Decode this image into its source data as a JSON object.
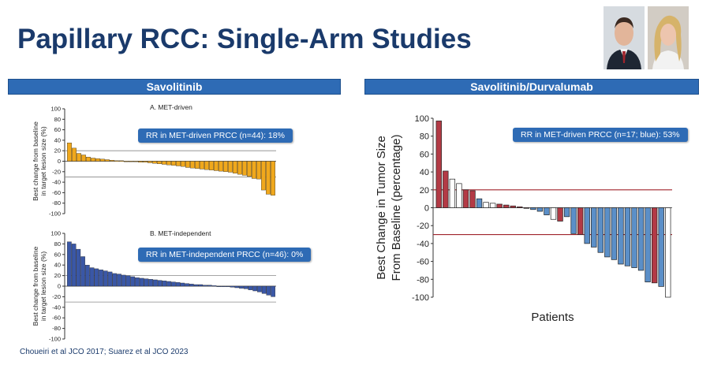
{
  "slide": {
    "title": "Papillary RCC: Single-Arm Studies",
    "footer": "Choueiri et al JCO 2017; Suarez et al JCO 2023"
  },
  "panels": {
    "left_header": "Savolitinib",
    "right_header": "Savolitinib/Durvalumab",
    "box_a": "RR in MET-driven PRCC (n=44): 18%",
    "box_b": "RR in MET-independent PRCC (n=46): 0%",
    "box_c": "RR in MET-driven PRCC (n=17; blue): 53%"
  },
  "colors": {
    "orange": "#f0a81c",
    "navy": "#3a57a6",
    "red": "#b33a45",
    "blue": "#5b8fc8",
    "white": "#ffffff",
    "threshold": "#a0242c"
  },
  "chart_data": [
    {
      "type": "bar",
      "title": "A. MET-driven",
      "ylabel": [
        "Best change from baseline",
        "in target lesion size (%)"
      ],
      "ylim": [
        -100,
        100
      ],
      "yticks": [
        100,
        80,
        60,
        40,
        20,
        0,
        -20,
        -40,
        -60,
        -80,
        -100
      ],
      "reference_lines": [
        20,
        -30
      ],
      "values": [
        35,
        25,
        15,
        12,
        8,
        6,
        5,
        4,
        3,
        2,
        1,
        1,
        0,
        0,
        -1,
        -2,
        -2,
        -3,
        -4,
        -5,
        -6,
        -7,
        -8,
        -9,
        -10,
        -12,
        -13,
        -14,
        -15,
        -16,
        -17,
        -18,
        -19,
        -20,
        -21,
        -23,
        -25,
        -27,
        -29,
        -33,
        -34,
        -55,
        -63,
        -65
      ],
      "color": "#f0a81c"
    },
    {
      "type": "bar",
      "title": "B. MET-independent",
      "ylabel": [
        "Best change from baseline",
        "in target lesion size (%)"
      ],
      "ylim": [
        -100,
        100
      ],
      "yticks": [
        100,
        80,
        60,
        40,
        20,
        0,
        -20,
        -40,
        -60,
        -80,
        -100
      ],
      "reference_lines": [
        20,
        -30
      ],
      "values": [
        84,
        80,
        70,
        56,
        40,
        35,
        33,
        31,
        29,
        27,
        24,
        23,
        21,
        20,
        18,
        16,
        15,
        14,
        13,
        12,
        11,
        10,
        9,
        8,
        7,
        6,
        5,
        4,
        3,
        3,
        2,
        2,
        1,
        0,
        0,
        -1,
        -2,
        -3,
        -4,
        -5,
        -7,
        -9,
        -11,
        -14,
        -17,
        -20
      ],
      "color": "#3a57a6"
    },
    {
      "type": "bar",
      "ylabel": [
        "Best Change in Tumor Size",
        "From Baseline (percentage)"
      ],
      "xlabel": "Patients",
      "ylim": [
        -100,
        100
      ],
      "yticks": [
        100,
        80,
        60,
        40,
        20,
        0,
        -20,
        -40,
        -60,
        -80,
        -100
      ],
      "reference_lines": [
        20,
        -30
      ],
      "series": [
        {
          "values": [
            97,
            41,
            32,
            27,
            20,
            19,
            10,
            6,
            5,
            4,
            3,
            2,
            1,
            0,
            -2,
            -4,
            -8,
            -13,
            -15,
            -10,
            -29,
            -30,
            -40,
            -44,
            -50,
            -55,
            -58,
            -63,
            -65,
            -67,
            -70,
            -83,
            -84,
            -88,
            -100
          ],
          "colors": [
            "red",
            "red",
            "white",
            "white",
            "red",
            "red",
            "blue",
            "white",
            "white",
            "red",
            "red",
            "red",
            "red",
            "red",
            "blue",
            "blue",
            "blue",
            "white",
            "red",
            "blue",
            "blue",
            "red",
            "blue",
            "blue",
            "blue",
            "blue",
            "blue",
            "blue",
            "blue",
            "blue",
            "blue",
            "blue",
            "red",
            "blue",
            "white"
          ]
        }
      ]
    }
  ]
}
